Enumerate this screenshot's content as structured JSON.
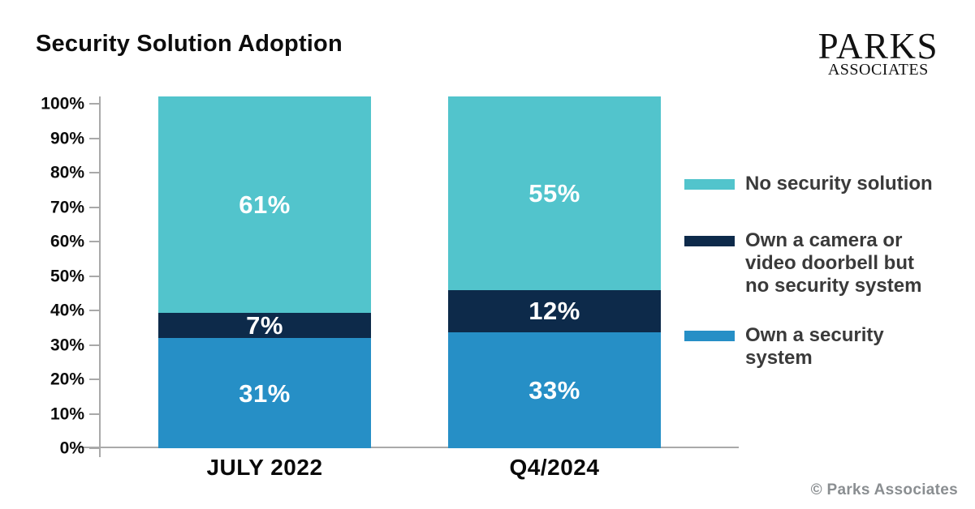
{
  "title": "Security Solution Adoption",
  "logo": {
    "line1": "PARKS",
    "line2": "ASSOCIATES"
  },
  "footer": {
    "copyright": "© Parks Associates"
  },
  "colors": {
    "teal": "#52C4CC",
    "navy": "#0D2A4A",
    "blue": "#268FC6",
    "axis_line": "#A9A9A9",
    "text": "#0D0D0D",
    "legend_text": "#3A3A3A",
    "copyright_text": "#8A8E91",
    "bar_value_text": "#FFFFFF"
  },
  "chart_data": {
    "type": "bar",
    "stacked": true,
    "title": "Security Solution Adoption",
    "xlabel": "",
    "ylabel": "",
    "unit": "%",
    "categories": [
      "JULY 2022",
      "Q4/2024"
    ],
    "series": [
      {
        "name": "Own a security system",
        "color": "#268FC6",
        "values": [
          31,
          33
        ]
      },
      {
        "name": "Own a camera or video doorbell but no security system",
        "color": "#0D2A4A",
        "values": [
          7,
          12
        ]
      },
      {
        "name": "No security solution",
        "color": "#52C4CC",
        "values": [
          61,
          55
        ]
      }
    ],
    "ylim": [
      0,
      100
    ],
    "yticks": [
      "0%",
      "10%",
      "20%",
      "30%",
      "40%",
      "50%",
      "60%",
      "70%",
      "80%",
      "90%",
      "100%"
    ],
    "grid": false,
    "legend_position": "right"
  },
  "legend": {
    "items": [
      {
        "label": "No security solution",
        "lines": [
          "No security solution"
        ],
        "color": "#52C4CC"
      },
      {
        "label": "Own a camera or video doorbell but no security system",
        "lines": [
          "Own a camera or",
          "video doorbell but",
          "no security system"
        ],
        "color": "#0D2A4A"
      },
      {
        "label": "Own a security system",
        "lines": [
          "Own a security",
          "system"
        ],
        "color": "#268FC6"
      }
    ]
  }
}
